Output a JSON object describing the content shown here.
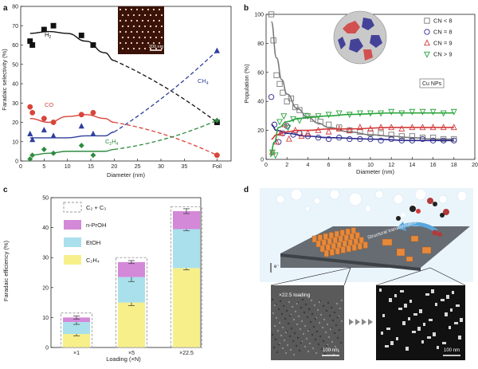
{
  "colors": {
    "h2": "#111111",
    "co": "#d9453b",
    "ch4": "#2f3f9e",
    "c2h4": "#2e8b3e",
    "cn_lt8": "#7a7a7a",
    "cn_eq8": "#2d2a8f",
    "cn_eq9": "#d33b3b",
    "cn_gt9": "#27a33a",
    "c2c3_border": "#9a9a9a",
    "nproh": "#d488d8",
    "etoh": "#a9e0ec",
    "c2h4_bar": "#f7ef8a"
  },
  "panels": {
    "a": {
      "letter": "a",
      "scale_bar": "200 nm"
    },
    "b": {
      "letter": "b",
      "inset_label": "Cu NPs"
    },
    "c": {
      "letter": "c"
    },
    "d": {
      "letter": "d",
      "arrow_label": "Structural transformation",
      "electron_label": "e⁻",
      "left_label": "×22.5 loading",
      "scale_left": "100 nm",
      "scale_right": "100 nm"
    }
  },
  "chart_data": [
    {
      "panel": "a",
      "type": "scatter",
      "xlabel": "Diameter (nm)",
      "ylabel": "Faradaic selectivity (%)",
      "xlim": [
        0,
        45
      ],
      "ylim": [
        0,
        80
      ],
      "xticks": [
        "0",
        "5",
        "10",
        "15",
        "20",
        "25",
        "30",
        "35",
        "Foil"
      ],
      "xtick_values": [
        0,
        5,
        10,
        15,
        20,
        25,
        30,
        35,
        42
      ],
      "yticks": [
        0,
        10,
        20,
        30,
        40,
        50,
        60,
        70,
        80
      ],
      "series": [
        {
          "name": "H₂",
          "color_key": "h2",
          "marker": "square",
          "x": [
            2,
            2.5,
            5,
            7,
            13,
            15.5,
            42
          ],
          "y": [
            62,
            60,
            68,
            70,
            65,
            60,
            20
          ],
          "curve_x": [
            2,
            6,
            10,
            14,
            18,
            20
          ],
          "curve_y": [
            66,
            67,
            66,
            62,
            56,
            52
          ],
          "dashed": [
            [
              20,
              52
            ],
            [
              42,
              20
            ]
          ]
        },
        {
          "name": "CO",
          "color_key": "co",
          "marker": "circle",
          "x": [
            2,
            2.5,
            5,
            7,
            13,
            15.5,
            42
          ],
          "y": [
            28,
            25,
            22,
            20,
            24,
            25,
            3
          ],
          "curve_x": [
            2,
            6,
            10,
            14,
            18,
            20
          ],
          "curve_y": [
            22,
            20,
            23,
            24,
            22,
            20
          ],
          "dashed": [
            [
              20,
              20
            ],
            [
              42,
              3
            ]
          ]
        },
        {
          "name": "CH₄",
          "color_key": "ch4",
          "marker": "triangle",
          "x": [
            2,
            2.5,
            5,
            7,
            13,
            15.5,
            42
          ],
          "y": [
            14,
            11,
            16,
            13,
            18,
            14,
            57
          ],
          "curve_x": [
            2,
            6,
            10,
            14,
            18,
            20
          ],
          "curve_y": [
            12,
            12,
            12,
            13,
            13,
            15
          ],
          "dashed": [
            [
              20,
              15
            ],
            [
              42,
              57
            ]
          ]
        },
        {
          "name": "C₂H₄",
          "color_key": "c2h4",
          "marker": "diamond",
          "x": [
            2,
            2.5,
            5,
            7,
            13,
            15.5,
            42
          ],
          "y": [
            1,
            3,
            6,
            4,
            8,
            3,
            21
          ],
          "curve_x": [
            2,
            6,
            10,
            14,
            18,
            20
          ],
          "curve_y": [
            3,
            4,
            5,
            5,
            5,
            6
          ],
          "dashed": [
            [
              20,
              6
            ],
            [
              42,
              21
            ]
          ]
        }
      ]
    },
    {
      "panel": "b",
      "type": "scatter",
      "xlabel": "Diameter (nm)",
      "ylabel": "Population (%)",
      "xlim": [
        0,
        20
      ],
      "ylim": [
        0,
        100
      ],
      "xticks": [
        0,
        2,
        4,
        6,
        8,
        10,
        12,
        14,
        16,
        18,
        20
      ],
      "yticks": [
        0,
        20,
        40,
        60,
        80,
        100
      ],
      "series": [
        {
          "name": "CN < 8",
          "color_key": "cn_lt8",
          "marker": "square",
          "x": [
            0.5,
            0.7,
            1,
            1.3,
            1.6,
            2,
            2.4,
            2.8,
            3.2,
            3.8,
            4.5,
            5.2,
            6,
            7,
            8,
            9,
            10,
            11,
            12,
            13,
            14,
            15,
            16,
            17,
            18
          ],
          "y": [
            100,
            82,
            58,
            52,
            46,
            40,
            42,
            36,
            34,
            30,
            28,
            26,
            24,
            22,
            20,
            19,
            18,
            18,
            17,
            16,
            16,
            15,
            15,
            14,
            14
          ],
          "curve_x": [
            0.5,
            1,
            1.5,
            2,
            3,
            4,
            5,
            6,
            8,
            10,
            12,
            14,
            16,
            18
          ],
          "curve_y": [
            95,
            70,
            55,
            45,
            35,
            29,
            25,
            22,
            19,
            17,
            16,
            15,
            14,
            14
          ]
        },
        {
          "name": "CN = 8",
          "color_key": "cn_eq8",
          "marker": "circle",
          "x": [
            0.5,
            0.8,
            1.2,
            1.6,
            2,
            2.6,
            3.2,
            4,
            5,
            6,
            7,
            8,
            9,
            10,
            11,
            12,
            13,
            14,
            15,
            16,
            17,
            18
          ],
          "y": [
            43,
            24,
            12,
            18,
            23,
            17,
            18,
            16,
            15,
            14,
            15,
            14,
            14,
            14,
            13,
            14,
            13,
            13,
            14,
            13,
            13,
            13
          ],
          "curve_x": [
            0.5,
            1,
            2,
            4,
            6,
            10,
            14,
            18
          ],
          "curve_y": [
            24,
            20,
            18,
            16,
            15,
            14,
            13,
            13
          ]
        },
        {
          "name": "CN = 9",
          "color_key": "cn_eq9",
          "marker": "triangle",
          "x": [
            0.6,
            1,
            1.4,
            1.8,
            2.2,
            2.8,
            3.4,
            4,
            5,
            6,
            7,
            8,
            9,
            10,
            11,
            12,
            13,
            14,
            15,
            16,
            17,
            18
          ],
          "y": [
            5,
            12,
            18,
            24,
            14,
            20,
            16,
            18,
            20,
            19,
            21,
            20,
            22,
            21,
            22,
            22,
            21,
            22,
            22,
            22,
            22,
            22
          ],
          "curve_x": [
            0.5,
            1,
            2,
            3,
            4,
            6,
            8,
            12,
            18
          ],
          "curve_y": [
            14,
            17,
            19,
            20,
            20,
            21,
            21,
            22,
            22
          ]
        },
        {
          "name": "CN > 9",
          "color_key": "cn_gt9",
          "marker": "triangle-down",
          "x": [
            0.6,
            0.9,
            1.3,
            1.7,
            2.1,
            2.6,
            3.2,
            4,
            5,
            6,
            7,
            8,
            9,
            10,
            11,
            12,
            13,
            14,
            15,
            16,
            17,
            18
          ],
          "y": [
            5,
            3,
            26,
            30,
            22,
            28,
            27,
            30,
            30,
            31,
            32,
            31,
            32,
            32,
            32,
            33,
            32,
            33,
            33,
            33,
            32,
            33
          ],
          "curve_x": [
            0.4,
            0.8,
            1.2,
            2,
            3,
            4,
            6,
            8,
            12,
            18
          ],
          "curve_y": [
            2,
            12,
            22,
            26,
            28,
            29,
            30,
            31,
            32,
            32
          ]
        }
      ]
    },
    {
      "panel": "c",
      "type": "bar",
      "xlabel": "Loading (×N)",
      "ylabel": "Faradaic efficiency (%)",
      "ylim": [
        0,
        50
      ],
      "yticks": [
        0,
        10,
        20,
        30,
        40,
        50
      ],
      "categories": [
        "×1",
        "×5",
        "×22.5"
      ],
      "series": [
        {
          "name": "C₂H₄",
          "color_key": "c2h4_bar",
          "values": [
            4.5,
            15,
            26.5
          ],
          "errors": [
            0.6,
            1.0,
            0.6
          ]
        },
        {
          "name": "EtOH",
          "color_key": "etoh",
          "values": [
            4,
            8.5,
            13
          ],
          "errors": [
            0.8,
            1.5,
            0.5
          ]
        },
        {
          "name": "n-PrOH",
          "color_key": "nproh",
          "values": [
            1.5,
            5,
            6
          ],
          "errors": [
            0.5,
            0.5,
            0.8
          ]
        }
      ],
      "envelope": {
        "name": "C₂ + C₃",
        "values": [
          11.5,
          30,
          47
        ]
      }
    }
  ]
}
